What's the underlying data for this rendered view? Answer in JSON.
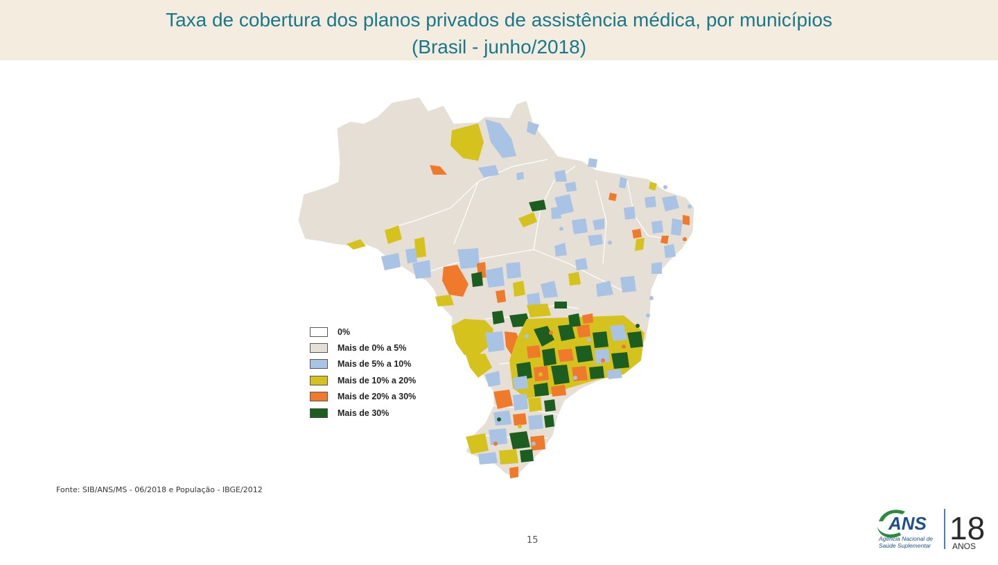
{
  "title": {
    "line1": "Taxa de cobertura dos planos privados de assistência médica, por municípios",
    "line2": "(Brasil - junho/2018)"
  },
  "legend": {
    "items": [
      {
        "label": "0%",
        "color": "#ffffff"
      },
      {
        "label": "Mais de 0% a 5%",
        "color": "#e6dfd6"
      },
      {
        "label": "Mais de 5% a 10%",
        "color": "#a8c3e3"
      },
      {
        "label": "Mais de 10% a 20%",
        "color": "#d6c21c"
      },
      {
        "label": "Mais de 20% a 30%",
        "color": "#ef7a2c"
      },
      {
        "label": "Mais de 30%",
        "color": "#1b5e20"
      }
    ]
  },
  "source": "Fonte: SIB/ANS/MS - 06/2018 e População - IBGE/2012",
  "page_number": "15",
  "logo": {
    "name": "ANS",
    "subtitle_line1": "Agência Nacional de",
    "subtitle_line2": "Saúde Suplementar",
    "years": "18",
    "years_label": "ANOS"
  },
  "colors": {
    "title": "#17788d",
    "title_band": "#f3ecdf",
    "map_base": "#e6dfd6",
    "logo_green": "#2e8b3e",
    "logo_blue": "#1d4f8c"
  }
}
